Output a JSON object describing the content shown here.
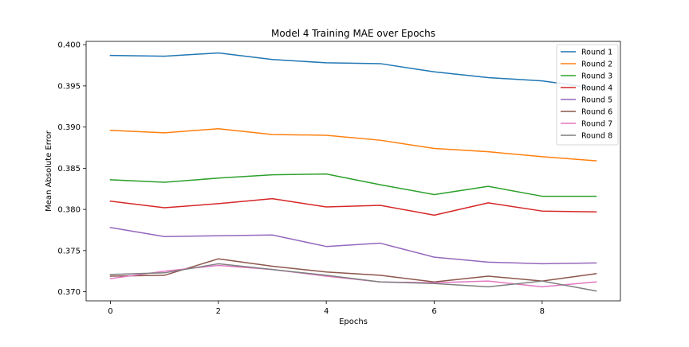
{
  "chart_data": {
    "type": "line",
    "title": "Model 4 Training MAE over Epochs",
    "xlabel": "Epochs",
    "ylabel": "Mean Absolute Error",
    "x": [
      0,
      1,
      2,
      3,
      4,
      5,
      6,
      7,
      8,
      9
    ],
    "xlim": [
      -0.45,
      9.45
    ],
    "ylim": [
      0.3689,
      0.4004
    ],
    "xticks": [
      0,
      2,
      4,
      6,
      8
    ],
    "yticks": [
      0.37,
      0.375,
      0.38,
      0.385,
      0.39,
      0.395,
      0.4
    ],
    "ytick_labels": [
      "0.370",
      "0.375",
      "0.380",
      "0.385",
      "0.390",
      "0.395",
      "0.400"
    ],
    "grid": false,
    "legend_position": "top-right",
    "series": [
      {
        "name": "Round 1",
        "color": "#1f77b4",
        "values": [
          0.3987,
          0.3986,
          0.399,
          0.3982,
          0.3978,
          0.3977,
          0.3967,
          0.396,
          0.3956,
          0.3947
        ]
      },
      {
        "name": "Round 2",
        "color": "#ff7f0e",
        "values": [
          0.3896,
          0.3893,
          0.3898,
          0.3891,
          0.389,
          0.3884,
          0.3874,
          0.387,
          0.3864,
          0.3859
        ]
      },
      {
        "name": "Round 3",
        "color": "#2ca02c",
        "values": [
          0.3836,
          0.3833,
          0.3838,
          0.3842,
          0.3843,
          0.383,
          0.3818,
          0.3828,
          0.3816,
          0.3816
        ]
      },
      {
        "name": "Round 4",
        "color": "#d62728",
        "values": [
          0.381,
          0.3802,
          0.3807,
          0.3813,
          0.3803,
          0.3805,
          0.3793,
          0.3808,
          0.3798,
          0.3797
        ]
      },
      {
        "name": "Round 5",
        "color": "#9467bd",
        "values": [
          0.3778,
          0.3767,
          0.3768,
          0.3769,
          0.3755,
          0.3759,
          0.3742,
          0.3736,
          0.3734,
          0.3735
        ]
      },
      {
        "name": "Round 6",
        "color": "#8c564b",
        "values": [
          0.3719,
          0.372,
          0.374,
          0.3731,
          0.3724,
          0.372,
          0.3712,
          0.3719,
          0.3713,
          0.3722
        ]
      },
      {
        "name": "Round 7",
        "color": "#e377c2",
        "values": [
          0.3716,
          0.3725,
          0.3732,
          0.3727,
          0.3719,
          0.3712,
          0.3711,
          0.3713,
          0.3706,
          0.3712
        ]
      },
      {
        "name": "Round 8",
        "color": "#7f7f7f",
        "values": [
          0.3721,
          0.3723,
          0.3734,
          0.3727,
          0.372,
          0.3712,
          0.371,
          0.3706,
          0.3713,
          0.3701
        ]
      }
    ]
  }
}
